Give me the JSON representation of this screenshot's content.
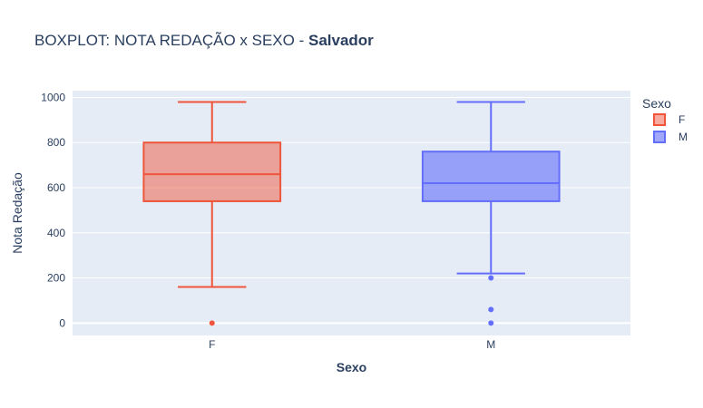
{
  "chart_data": {
    "type": "box",
    "title": "BOXPLOT: NOTA REDAÇÃO x SEXO - ",
    "title_bold": "Salvador",
    "xlabel": "Sexo",
    "ylabel": "Nota Redação",
    "categories": [
      "F",
      "M"
    ],
    "ylim": [
      -55,
      1030
    ],
    "yticks": [
      0,
      200,
      400,
      600,
      800,
      1000
    ],
    "grid": true,
    "legend": {
      "title": "Sexo",
      "position": "top-right"
    },
    "series": [
      {
        "name": "F",
        "category": "F",
        "color": "#EF553B",
        "fill": "rgba(239,85,59,0.5)",
        "min": 160,
        "q1": 540,
        "median": 660,
        "q3": 800,
        "max": 980,
        "outliers": [
          0
        ]
      },
      {
        "name": "M",
        "category": "M",
        "color": "#636EFA",
        "fill": "rgba(99,110,250,0.6)",
        "min": 220,
        "q1": 540,
        "median": 620,
        "q3": 760,
        "max": 980,
        "outliers": [
          200,
          60,
          0
        ]
      }
    ]
  }
}
